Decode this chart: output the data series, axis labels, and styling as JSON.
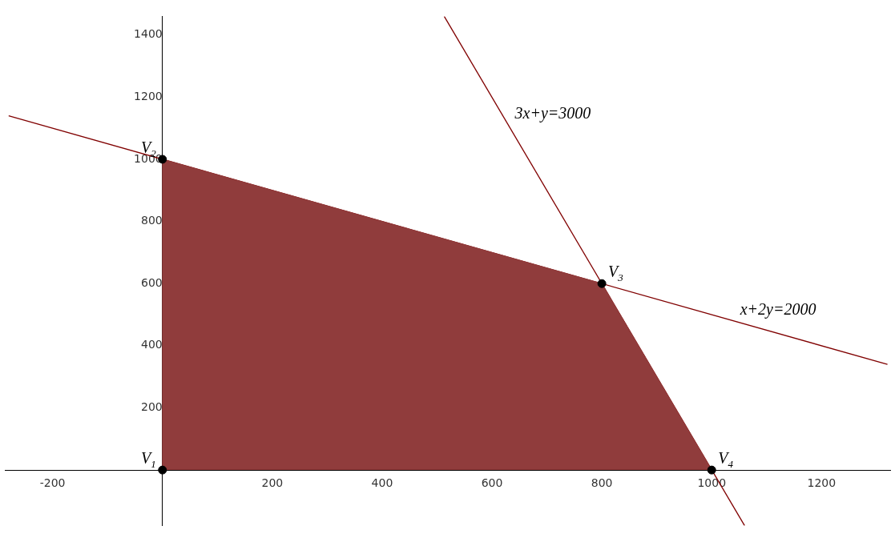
{
  "chart_data": {
    "type": "line",
    "xlim": [
      -287,
      1325
    ],
    "ylim": [
      -179,
      1460
    ],
    "xticks": [
      -200,
      200,
      400,
      600,
      800,
      1000,
      1200
    ],
    "yticks": [
      200,
      400,
      600,
      800,
      1000,
      1200,
      1400
    ],
    "grid": false,
    "legend": false,
    "series": [
      {
        "type": "area",
        "color": "#903c3c",
        "x": [
          0,
          0,
          800,
          1000
        ],
        "values": [
          0,
          1000,
          600,
          0
        ]
      },
      {
        "type": "line",
        "color": "#800000",
        "x": [
          -280,
          1320
        ],
        "values": [
          1140,
          340
        ]
      },
      {
        "type": "line",
        "color": "#800000",
        "x": [
          513,
          1060
        ],
        "values": [
          1460,
          -179
        ]
      },
      {
        "type": "scatter",
        "color": "#000000",
        "marker": "circle",
        "x": [
          0,
          0,
          800,
          1000
        ],
        "values": [
          0,
          1000,
          600,
          0
        ]
      }
    ],
    "annotations": [
      {
        "text": "V$_{1}$",
        "x": 0,
        "y": 0
      },
      {
        "text": "V$_{2}$",
        "x": 0,
        "y": 1000
      },
      {
        "text": "V$_{3}$",
        "x": 800,
        "y": 600
      },
      {
        "text": "V$_{4}$",
        "x": 1000,
        "y": 0
      },
      {
        "text": "3x+y=3000",
        "x": 630,
        "y": 1110
      },
      {
        "text": "x+2y=2000",
        "x": 1040,
        "y": 480
      }
    ]
  }
}
